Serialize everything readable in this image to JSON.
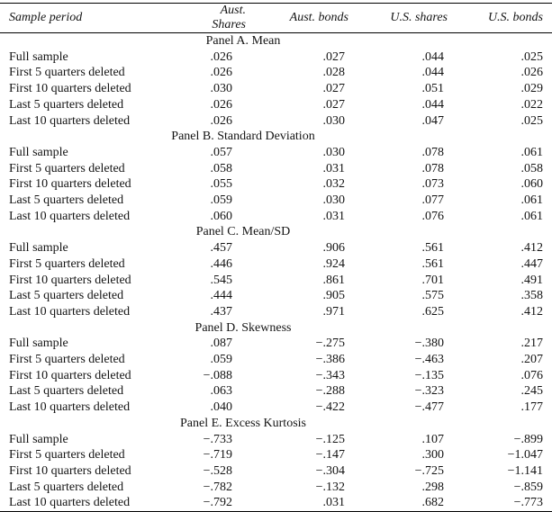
{
  "table": {
    "columns": [
      "Sample period",
      "Aust. Shares",
      "Aust. bonds",
      "U.S. shares",
      "U.S. bonds"
    ],
    "row_labels": [
      "Full sample",
      "First 5 quarters deleted",
      "First 10 quarters deleted",
      "Last 5 quarters deleted",
      "Last 10 quarters deleted"
    ],
    "panels": [
      {
        "title": "Panel A. Mean",
        "rows": [
          [
            ".026",
            ".027",
            ".044",
            ".025"
          ],
          [
            ".026",
            ".028",
            ".044",
            ".026"
          ],
          [
            ".030",
            ".027",
            ".051",
            ".029"
          ],
          [
            ".026",
            ".027",
            ".044",
            ".022"
          ],
          [
            ".026",
            ".030",
            ".047",
            ".025"
          ]
        ]
      },
      {
        "title": "Panel B. Standard Deviation",
        "rows": [
          [
            ".057",
            ".030",
            ".078",
            ".061"
          ],
          [
            ".058",
            ".031",
            ".078",
            ".058"
          ],
          [
            ".055",
            ".032",
            ".073",
            ".060"
          ],
          [
            ".059",
            ".030",
            ".077",
            ".061"
          ],
          [
            ".060",
            ".031",
            ".076",
            ".061"
          ]
        ]
      },
      {
        "title": "Panel C. Mean/SD",
        "rows": [
          [
            ".457",
            ".906",
            ".561",
            ".412"
          ],
          [
            ".446",
            ".924",
            ".561",
            ".447"
          ],
          [
            ".545",
            ".861",
            ".701",
            ".491"
          ],
          [
            ".444",
            ".905",
            ".575",
            ".358"
          ],
          [
            ".437",
            ".971",
            ".625",
            ".412"
          ]
        ]
      },
      {
        "title": "Panel D. Skewness",
        "rows": [
          [
            ".087",
            "−.275",
            "−.380",
            ".217"
          ],
          [
            ".059",
            "−.386",
            "−.463",
            ".207"
          ],
          [
            "−.088",
            "−.343",
            "−.135",
            ".076"
          ],
          [
            ".063",
            "−.288",
            "−.323",
            ".245"
          ],
          [
            ".040",
            "−.422",
            "−.477",
            ".177"
          ]
        ]
      },
      {
        "title": "Panel E. Excess Kurtosis",
        "rows": [
          [
            "−.733",
            "−.125",
            ".107",
            "−.899"
          ],
          [
            "−.719",
            "−.147",
            ".300",
            "−1.047"
          ],
          [
            "−.528",
            "−.304",
            "−.725",
            "−1.141"
          ],
          [
            "−.782",
            "−.132",
            ".298",
            "−.859"
          ],
          [
            "−.792",
            ".031",
            ".682",
            "−.773"
          ]
        ]
      }
    ]
  }
}
